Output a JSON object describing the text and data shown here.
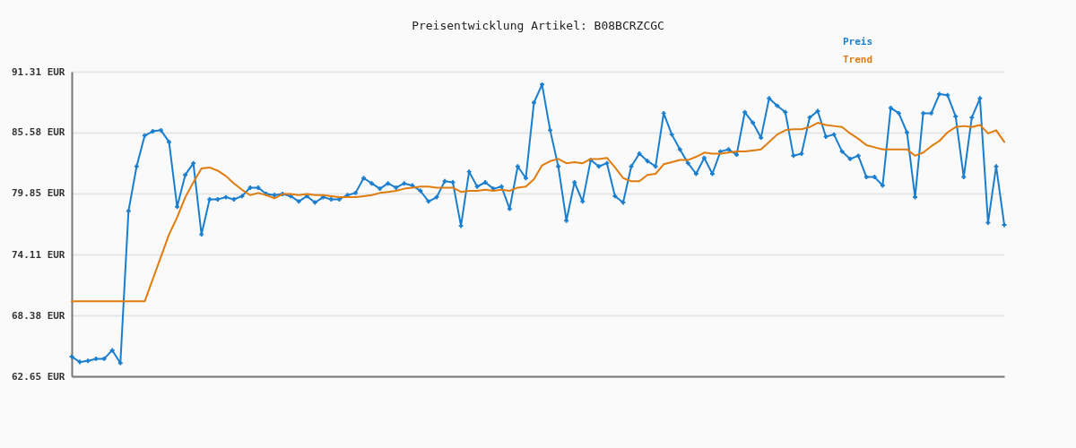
{
  "chart_data": {
    "type": "line",
    "title": "Preisentwicklung Artikel: B08BCRZCGC",
    "categories": [
      null,
      null,
      null,
      null,
      null,
      null,
      null,
      null,
      null,
      null,
      null,
      null,
      null,
      null,
      null,
      null,
      null,
      null,
      null,
      null,
      null,
      null,
      null,
      null,
      null,
      null,
      null,
      null,
      null,
      null,
      null,
      null,
      null,
      null,
      null,
      null,
      null,
      null,
      null,
      null,
      null,
      null,
      null,
      null,
      null,
      null,
      null,
      null,
      null,
      null,
      null,
      null,
      null,
      null,
      null,
      null,
      null,
      null,
      null,
      null,
      null,
      null,
      null,
      null,
      null,
      null,
      null,
      null,
      null,
      null,
      null,
      null,
      null,
      null,
      null,
      null,
      null,
      null,
      null,
      null,
      null,
      null,
      null,
      null,
      null,
      null,
      null,
      null,
      null,
      null,
      null,
      null,
      null,
      null,
      null,
      null,
      null,
      null,
      null,
      null,
      null,
      null,
      null,
      null,
      null,
      null,
      null,
      null,
      null,
      null,
      null,
      null,
      null,
      null,
      null,
      null
    ],
    "series": [
      {
        "name": "Preis",
        "color": "#1a7ece",
        "marker": "cross",
        "values": [
          64.5,
          64.0,
          64.1,
          64.3,
          64.3,
          65.1,
          63.9,
          78.2,
          82.4,
          85.3,
          85.7,
          85.8,
          84.7,
          78.6,
          81.6,
          82.7,
          76.0,
          79.3,
          79.3,
          79.5,
          79.3,
          79.6,
          80.4,
          80.4,
          79.8,
          79.7,
          79.8,
          79.6,
          79.1,
          79.6,
          79.0,
          79.5,
          79.3,
          79.3,
          79.7,
          79.9,
          81.3,
          80.8,
          80.3,
          80.8,
          80.4,
          80.8,
          80.6,
          80.1,
          79.1,
          79.5,
          81.0,
          80.9,
          76.8,
          81.9,
          80.5,
          80.9,
          80.3,
          80.5,
          78.4,
          82.4,
          81.3,
          88.4,
          90.1,
          85.8,
          82.4,
          77.3,
          80.9,
          79.1,
          83.0,
          82.4,
          82.7,
          79.6,
          79.0,
          82.4,
          83.6,
          82.9,
          82.4,
          87.4,
          85.4,
          84.0,
          82.7,
          81.7,
          83.2,
          81.7,
          83.8,
          84.0,
          83.5,
          87.5,
          86.5,
          85.1,
          88.8,
          88.1,
          87.5,
          83.4,
          83.6,
          87.0,
          87.6,
          85.2,
          85.4,
          83.8,
          83.1,
          83.4,
          81.4,
          81.4,
          80.6,
          87.9,
          87.4,
          85.6,
          79.5,
          87.4,
          87.4,
          89.2,
          89.1,
          87.1,
          81.4,
          87.0,
          88.8,
          77.1,
          82.4,
          76.9
        ]
      },
      {
        "name": "Trend",
        "color": "#e07c0e",
        "marker": "none",
        "values": [
          69.7,
          69.7,
          69.7,
          69.7,
          69.7,
          69.7,
          69.7,
          69.7,
          69.7,
          69.7,
          71.8,
          73.9,
          76.0,
          77.6,
          79.5,
          80.9,
          82.2,
          82.3,
          82.0,
          81.5,
          80.8,
          80.2,
          79.7,
          79.9,
          79.7,
          79.4,
          79.8,
          79.8,
          79.7,
          79.8,
          79.7,
          79.7,
          79.6,
          79.5,
          79.5,
          79.5,
          79.6,
          79.7,
          79.9,
          80.0,
          80.1,
          80.3,
          80.4,
          80.5,
          80.5,
          80.4,
          80.4,
          80.4,
          80.0,
          80.1,
          80.1,
          80.2,
          80.1,
          80.2,
          80.1,
          80.4,
          80.5,
          81.2,
          82.5,
          82.9,
          83.1,
          82.7,
          82.8,
          82.7,
          83.1,
          83.1,
          83.2,
          82.3,
          81.3,
          81.0,
          81.0,
          81.6,
          81.7,
          82.6,
          82.8,
          83.0,
          83.0,
          83.3,
          83.7,
          83.6,
          83.6,
          83.7,
          83.8,
          83.8,
          83.9,
          84.0,
          84.7,
          85.4,
          85.8,
          85.9,
          85.9,
          86.1,
          86.5,
          86.3,
          86.2,
          86.1,
          85.5,
          85.0,
          84.4,
          84.2,
          84.0,
          84.0,
          84.0,
          84.0,
          83.4,
          83.7,
          84.3,
          84.8,
          85.6,
          86.1,
          86.2,
          86.1,
          86.3,
          85.5,
          85.8,
          84.7
        ]
      }
    ],
    "ylim": [
      62.65,
      91.31
    ],
    "yticks": [
      {
        "value": 62.65,
        "label": "62.65 EUR"
      },
      {
        "value": 68.38,
        "label": "68.38 EUR"
      },
      {
        "value": 74.11,
        "label": "74.11 EUR"
      },
      {
        "value": 79.85,
        "label": "79.85 EUR"
      },
      {
        "value": 85.58,
        "label": "85.58 EUR"
      },
      {
        "value": 91.31,
        "label": "91.31 EUR"
      }
    ],
    "grid": "y",
    "legend": "top right",
    "tick_labels": "y",
    "line_style": "solid"
  }
}
